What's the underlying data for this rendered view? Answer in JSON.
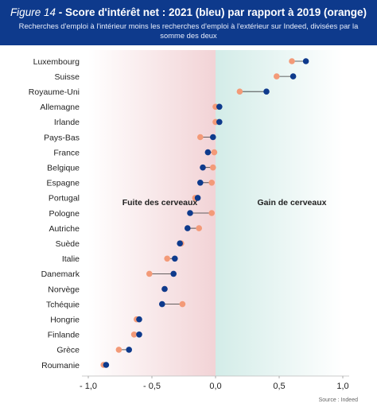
{
  "header": {
    "figure_label": "Figure 14",
    "title": " - Score d'intérêt net : 2021 (bleu) par rapport à 2019 (orange)",
    "subtitle": "Recherches d'emploi à l'intérieur moins les recherches d'emploi à l'extérieur sur Indeed, divisées par la somme des deux"
  },
  "source": "Source : Indeed",
  "colors": {
    "header_bg": "#0e3a8c",
    "blue": "#0e3a8c",
    "orange": "#f39a78",
    "left_region": "#f2d3d6",
    "right_region": "#d3ece8"
  },
  "chart_data": {
    "type": "dumbbell",
    "title": "Score d'intérêt net : 2021 (bleu) par rapport à 2019 (orange)",
    "categories": [
      "Luxembourg",
      "Suisse",
      "Royaume-Uni",
      "Allemagne",
      "Irlande",
      "Pays-Bas",
      "France",
      "Belgique",
      "Espagne",
      "Portugal",
      "Pologne",
      "Autriche",
      "Suède",
      "Italie",
      "Danemark",
      "Norvège",
      "Tchéquie",
      "Hongrie",
      "Finlande",
      "Grèce",
      "Roumanie"
    ],
    "series": [
      {
        "name": "2021",
        "color": "#0e3a8c",
        "values": [
          0.71,
          0.61,
          0.4,
          0.03,
          0.03,
          -0.02,
          -0.06,
          -0.1,
          -0.12,
          -0.14,
          -0.2,
          -0.22,
          -0.28,
          -0.32,
          -0.33,
          -0.4,
          -0.42,
          -0.6,
          -0.6,
          -0.68,
          -0.86
        ]
      },
      {
        "name": "2019",
        "color": "#f39a78",
        "values": [
          0.6,
          0.48,
          0.19,
          0.0,
          0.0,
          -0.12,
          -0.01,
          -0.02,
          -0.03,
          -0.16,
          -0.03,
          -0.13,
          -0.27,
          -0.38,
          -0.52,
          -0.4,
          -0.26,
          -0.62,
          -0.64,
          -0.76,
          -0.88
        ]
      }
    ],
    "xlim": [
      -1.0,
      1.0
    ],
    "xticks": [
      "- 1,0",
      "- 0,5",
      "0,0",
      "0,5",
      "1,0"
    ],
    "xtick_values": [
      -1.0,
      -0.5,
      0.0,
      0.5,
      1.0
    ],
    "annotations": {
      "left": "Fuite des cerveaux",
      "right": "Gain de cerveaux"
    },
    "grid": false
  }
}
